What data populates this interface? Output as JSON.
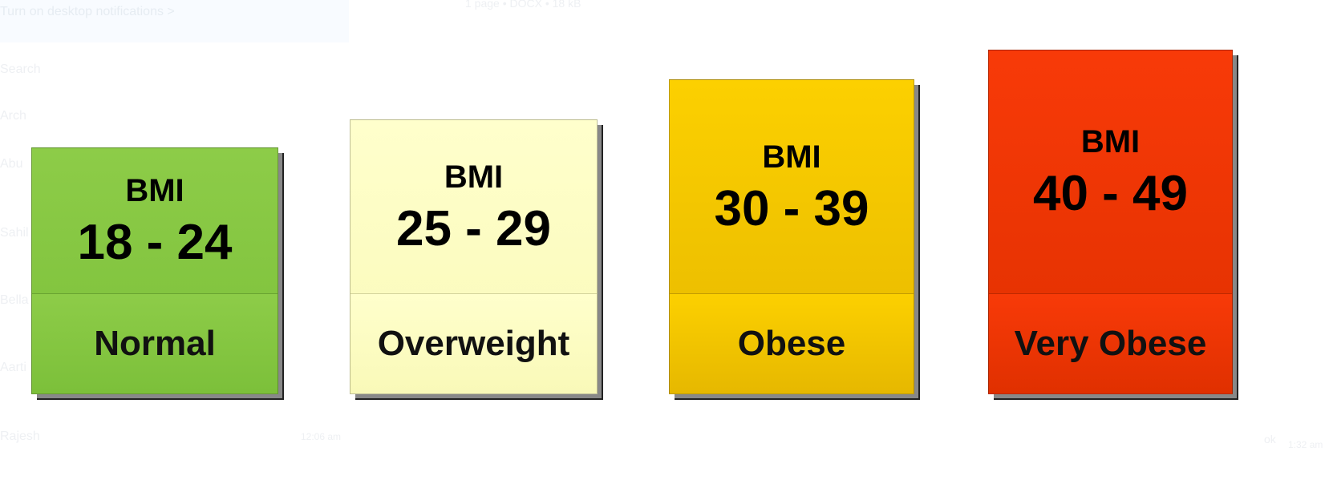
{
  "background": {
    "notification": "Turn on desktop notifications >",
    "search": "Search",
    "archived": "Arch",
    "chats": [
      "Abu",
      "Sahil",
      "Bella",
      "Aarti",
      "Rajesh"
    ],
    "chat_time": "12:06 am",
    "file_meta": "1 page • DOCX • 18 kB",
    "message": "ok",
    "message_time": "1:32 am"
  },
  "categories": [
    {
      "label": "BMI",
      "range": "18 - 24",
      "name": "Normal",
      "color": "#8dcc48",
      "color_dark": "#7cc03a"
    },
    {
      "label": "BMI",
      "range": "25 - 29",
      "name": "Overweight",
      "color": "#ffffcc",
      "color_dark": "#f9f9b8"
    },
    {
      "label": "BMI",
      "range": "30 - 39",
      "name": "Obese",
      "color": "#fcd000",
      "color_dark": "#e6b800"
    },
    {
      "label": "BMI",
      "range": "40 - 49",
      "name": "Very Obese",
      "color": "#f83a08",
      "color_dark": "#e03000"
    }
  ]
}
